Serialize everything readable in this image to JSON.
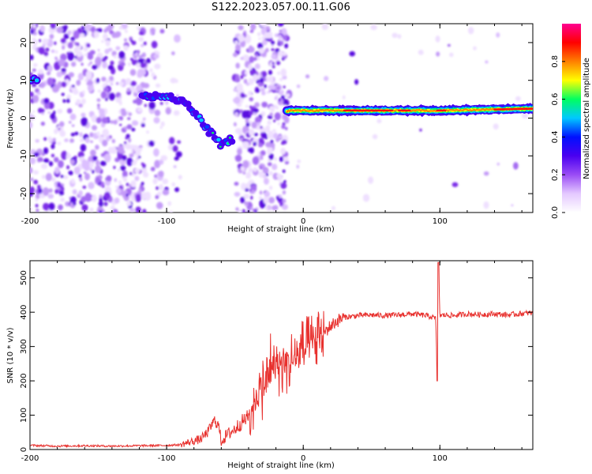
{
  "title": "S122.2023.057.00.11.G06",
  "chart_data": [
    {
      "type": "heatmap",
      "xlabel": "Height of straight line (km)",
      "ylabel": "Frequency (Hz)",
      "xlim": [
        -200,
        168
      ],
      "ylim": [
        -25,
        25
      ],
      "xticks": [
        -200,
        -100,
        0,
        100
      ],
      "yticks": [
        -20,
        -10,
        0,
        10,
        20
      ],
      "colorbar": {
        "label": "Normalized spectral amplitude",
        "range": [
          0,
          1
        ],
        "ticks": [
          "0.0",
          "0.2",
          "0.4",
          "0.6",
          "0.8"
        ],
        "colormap": [
          "#ffffff",
          "#e4c8ff",
          "#9a4cf5",
          "#4a00f0",
          "#0010ff",
          "#00c8ff",
          "#00ff60",
          "#ffff00",
          "#ff8000",
          "#ff0000",
          "#ff0090"
        ]
      },
      "ridge": [
        {
          "x": -200,
          "y": 10
        },
        {
          "x": -115,
          "y": 6
        },
        {
          "x": -100,
          "y": 6
        },
        {
          "x": -85,
          "y": 4
        },
        {
          "x": -70,
          "y": -3
        },
        {
          "x": -60,
          "y": -7
        },
        {
          "x": -20,
          "y": 1
        },
        {
          "x": -10,
          "y": 2
        },
        {
          "x": 0,
          "y": 2
        },
        {
          "x": 50,
          "y": 2
        },
        {
          "x": 100,
          "y": 2
        },
        {
          "x": 168,
          "y": 2.5
        }
      ]
    },
    {
      "type": "line",
      "xlabel": "Height of straight line (km)",
      "ylabel": "SNR (10 * v/v)",
      "xlim": [
        -200,
        168
      ],
      "ylim": [
        0,
        550
      ],
      "xticks": [
        -200,
        -100,
        0,
        100
      ],
      "yticks": [
        0,
        100,
        200,
        300,
        400,
        500
      ],
      "series": [
        {
          "color": "#e8312e",
          "x": [
            -200,
            -180,
            -160,
            -140,
            -120,
            -100,
            -90,
            -80,
            -75,
            -70,
            -65,
            -62,
            -60,
            -55,
            -50,
            -45,
            -40,
            -35,
            -30,
            -25,
            -22,
            -20,
            -15,
            -10,
            -5,
            0,
            5,
            10,
            15,
            20,
            25,
            30,
            40,
            50,
            60,
            70,
            80,
            90,
            95,
            97,
            98,
            99,
            100,
            105,
            110,
            120,
            130,
            140,
            150,
            160,
            168
          ],
          "y": [
            12,
            10,
            11,
            10,
            11,
            12,
            14,
            25,
            30,
            50,
            85,
            70,
            25,
            45,
            60,
            80,
            95,
            140,
            180,
            230,
            240,
            245,
            250,
            255,
            270,
            290,
            300,
            320,
            340,
            360,
            375,
            385,
            390,
            392,
            390,
            392,
            395,
            390,
            385,
            380,
            200,
            545,
            390,
            392,
            390,
            395,
            393,
            395,
            392,
            396,
            398
          ]
        }
      ]
    }
  ]
}
